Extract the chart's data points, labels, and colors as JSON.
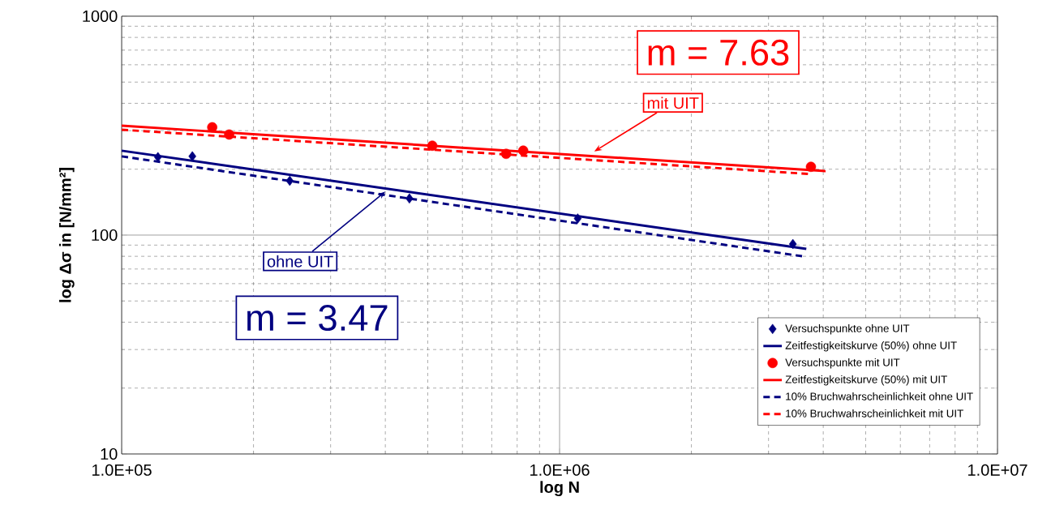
{
  "chart_data": {
    "type": "scatter",
    "xlabel": "log N",
    "ylabel": "log Δσ in [N/mm²]",
    "log": "xy",
    "grid": true,
    "legend": "bottom right",
    "xlim": [
      100000,
      10000000
    ],
    "ylim": [
      10,
      1000
    ],
    "xticks": [
      {
        "value": 100000,
        "label": "1.0E+05"
      },
      {
        "value": 1000000,
        "label": "1.0E+06"
      },
      {
        "value": 10000000,
        "label": "1.0E+07"
      }
    ],
    "yticks": [
      10,
      100,
      1000
    ],
    "series": [
      {
        "name": "Versuchspunkte ohne UIT",
        "marker": "diamond",
        "color": "#000080",
        "x": [
          121000,
          145000,
          242000,
          454000,
          1100000,
          3410000
        ],
        "values": [
          227,
          229,
          177,
          147,
          119,
          91
        ]
      },
      {
        "name": "Zeitfestigkeitskurve (50%) ohne UIT",
        "type": "line",
        "marker": "none",
        "line_style": "solid",
        "color": "#000080",
        "x": [
          100000,
          3660000
        ],
        "values": [
          243,
          86.5
        ]
      },
      {
        "name": "Versuchspunkte mit UIT",
        "marker": "circle",
        "color": "#ff0000",
        "x": [
          161000,
          176000,
          512000,
          755000,
          826000,
          3750000
        ],
        "values": [
          311,
          288,
          256,
          235,
          243,
          205
        ]
      },
      {
        "name": "Zeitfestigkeitskurve (50%) mit UIT",
        "type": "line",
        "marker": "none",
        "line_style": "solid",
        "color": "#ff0000",
        "x": [
          100000,
          4050000
        ],
        "values": [
          316,
          196
        ]
      },
      {
        "name": "10% Bruchwahrscheinlichkeit ohne UIT",
        "type": "line",
        "marker": "none",
        "line_style": "dashed",
        "color": "#000080",
        "x": [
          100000,
          3590000
        ],
        "values": [
          229,
          80
        ]
      },
      {
        "name": "10% Bruchwahrscheinlichkeit mit UIT",
        "type": "line",
        "marker": "none",
        "line_style": "dashed",
        "color": "#ff0000",
        "x": [
          100000,
          3750000
        ],
        "values": [
          303,
          190
        ]
      }
    ],
    "annotations": [
      "m = 7.63",
      {
        "text": "mit UIT",
        "x": 1200000,
        "y": 241
      },
      {
        "text": "ohne UIT",
        "x": 400000,
        "y": 158
      },
      "m = 3.47"
    ]
  }
}
